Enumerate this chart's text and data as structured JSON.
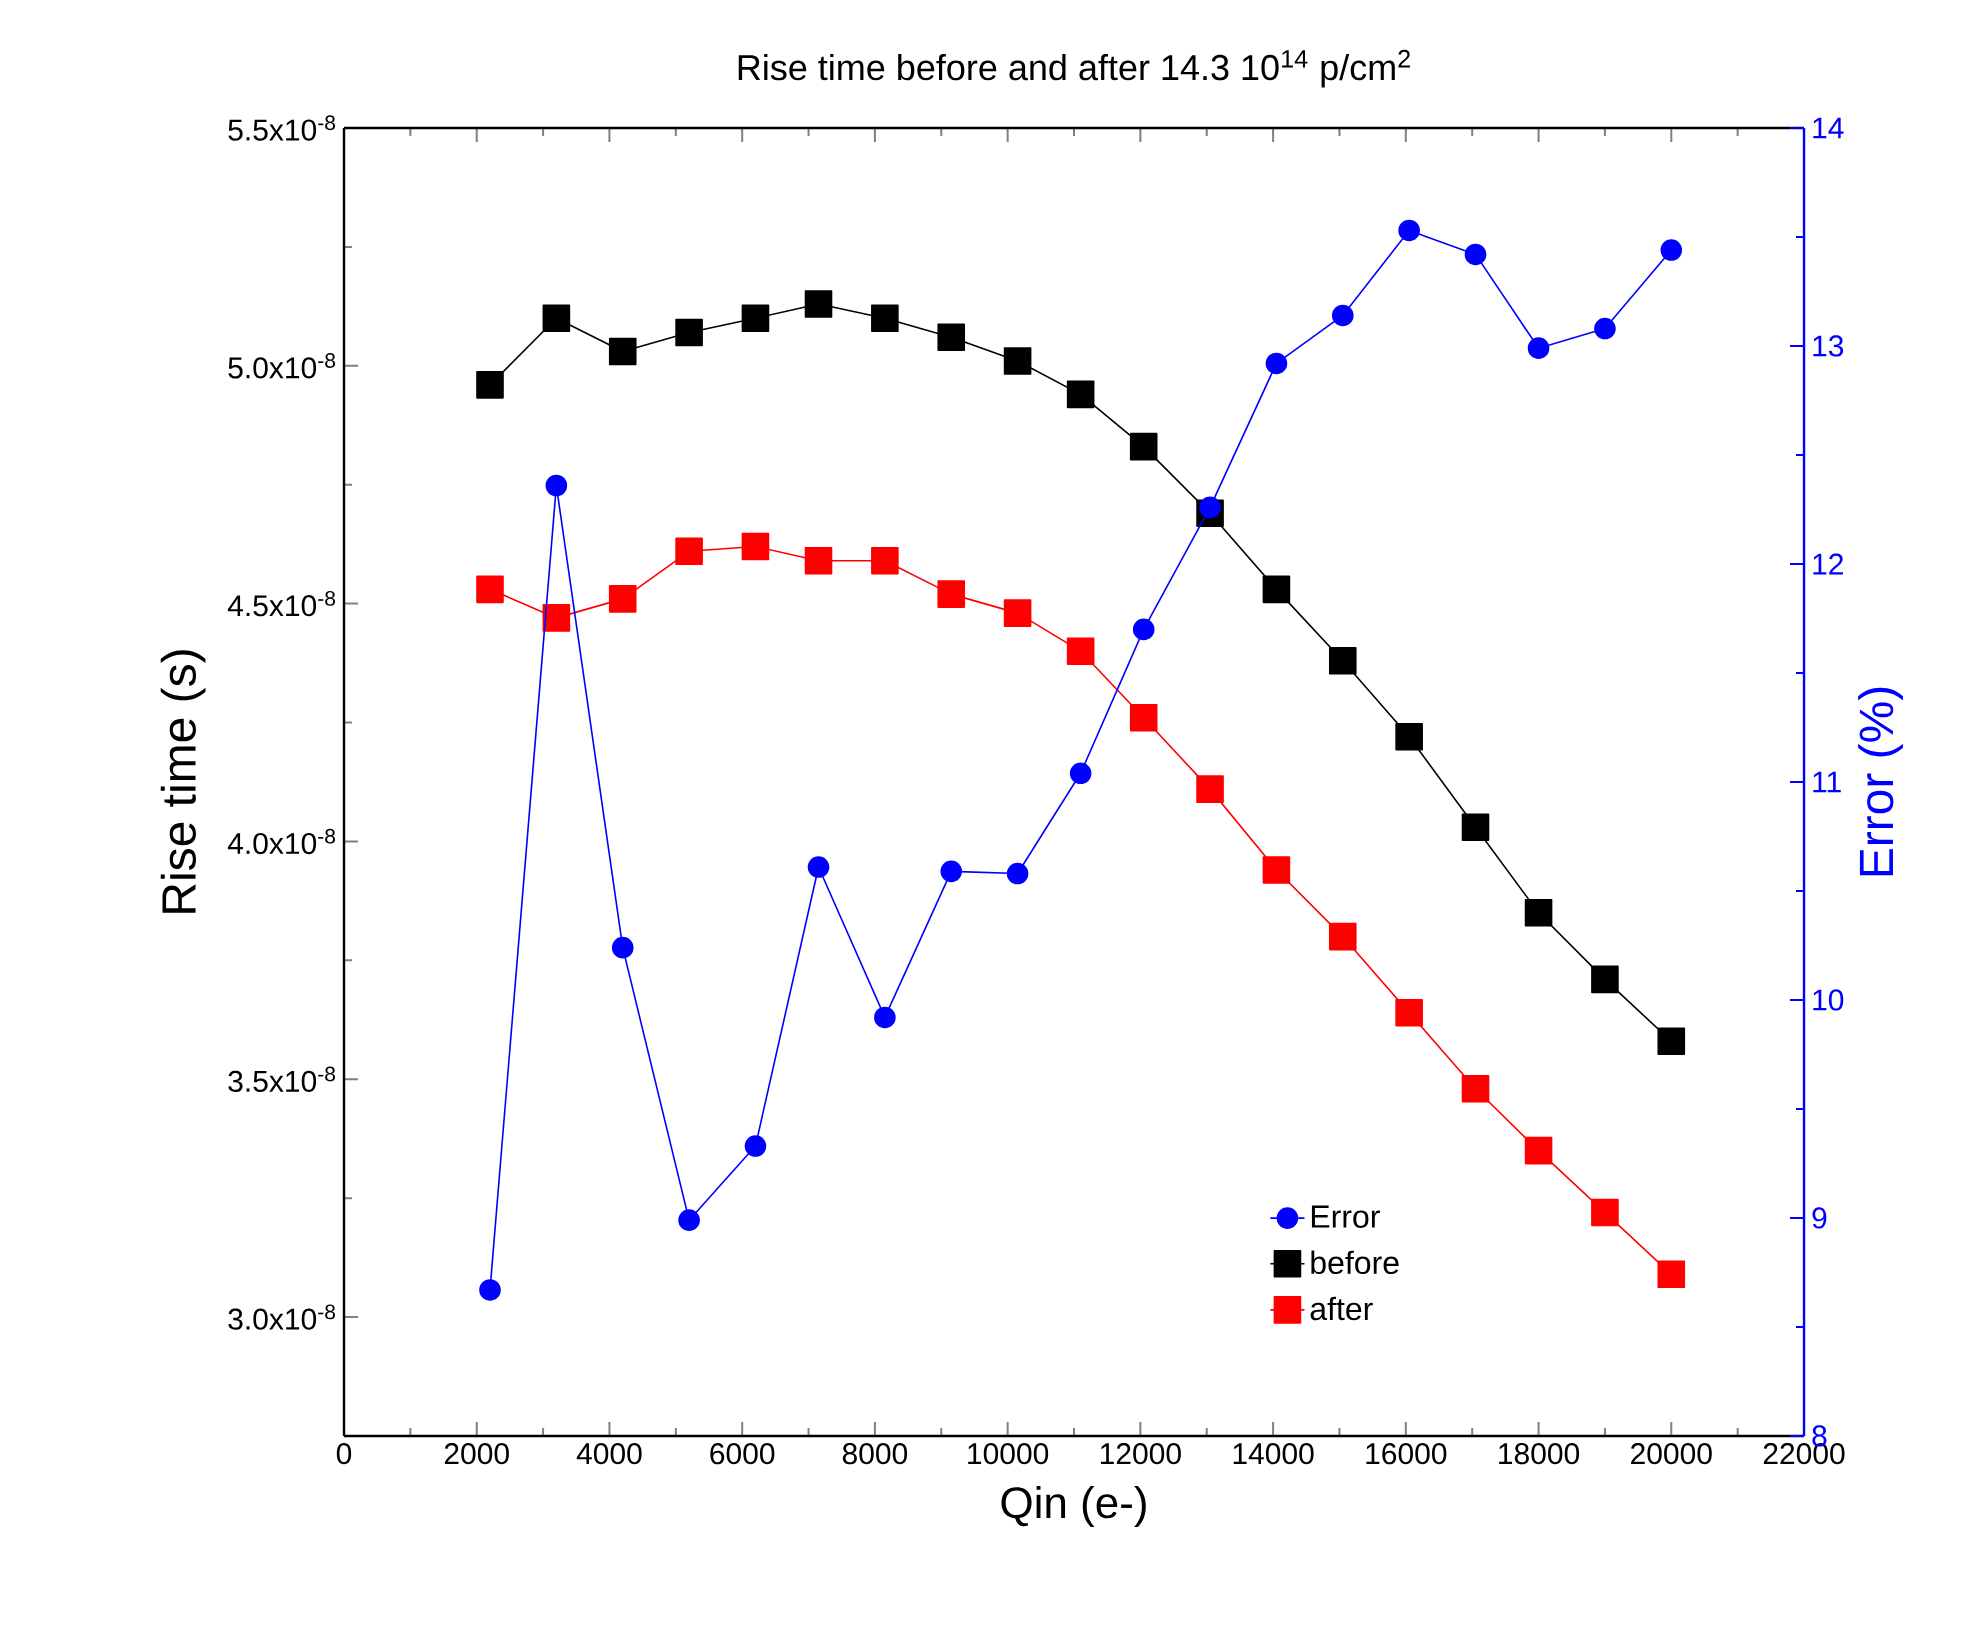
{
  "chart_data": {
    "type": "line",
    "title": "Rise time before and after 14.3 10$^{14}$ p/cm$^{2}$",
    "xlabel": "Qin (e-)",
    "ylabel": "Rise time (s)",
    "y2label": "Error (%)",
    "x": [
      2200,
      3200,
      4200,
      5200,
      6200,
      7150,
      8150,
      9150,
      10150,
      11100,
      12050,
      13050,
      14050,
      15050,
      16050,
      17050,
      18000,
      19000,
      20000
    ],
    "series": [
      {
        "name": "Error",
        "color": "#0000ff",
        "axis": "y2",
        "marker": "circle",
        "values": [
          8.67,
          12.36,
          10.24,
          8.99,
          9.33,
          10.61,
          9.92,
          10.59,
          10.58,
          11.04,
          11.7,
          12.26,
          12.92,
          13.14,
          13.53,
          13.42,
          12.99,
          13.08,
          13.44
        ]
      },
      {
        "name": "before",
        "color": "#000000",
        "marker": "square",
        "values": [
          4.96e-08,
          5.1e-08,
          5.03e-08,
          5.07e-08,
          5.1e-08,
          5.13e-08,
          5.1e-08,
          5.06e-08,
          5.01e-08,
          4.94e-08,
          4.83e-08,
          4.69e-08,
          4.53e-08,
          4.38e-08,
          4.22e-08,
          4.03e-08,
          3.85e-08,
          3.71e-08,
          3.58e-08
        ]
      },
      {
        "name": "after",
        "color": "#ff0000",
        "marker": "square",
        "values": [
          4.53e-08,
          4.47e-08,
          4.51e-08,
          4.61e-08,
          4.62e-08,
          4.59e-08,
          4.59e-08,
          4.52e-08,
          4.48e-08,
          4.4e-08,
          4.26e-08,
          4.11e-08,
          3.94e-08,
          3.8e-08,
          3.64e-08,
          3.48e-08,
          3.35e-08,
          3.22e-08,
          3.09e-08
        ]
      }
    ],
    "xlim": [
      0,
      22000
    ],
    "xticks": [
      0,
      2000,
      4000,
      6000,
      8000,
      10000,
      12000,
      14000,
      16000,
      18000,
      20000,
      22000
    ],
    "ylim": [
      2.75e-08,
      5.5e-08
    ],
    "yticks": [
      {
        "value": 3e-08,
        "label": "3.0x10$^{-8}$"
      },
      {
        "value": 3.5e-08,
        "label": "3.5x10$^{-8}$"
      },
      {
        "value": 4e-08,
        "label": "4.0x10$^{-8}$"
      },
      {
        "value": 4.5e-08,
        "label": "4.5x10$^{-8}$"
      },
      {
        "value": 5e-08,
        "label": "5.0x10$^{-8}$"
      },
      {
        "value": 5.5e-08,
        "label": "5.5x10$^{-8}$"
      }
    ],
    "y2lim": [
      8,
      14
    ],
    "y2ticks": [
      8,
      9,
      10,
      11,
      12,
      13,
      14
    ],
    "legend": "bottom right",
    "grid": false,
    "line_style": "solid"
  }
}
